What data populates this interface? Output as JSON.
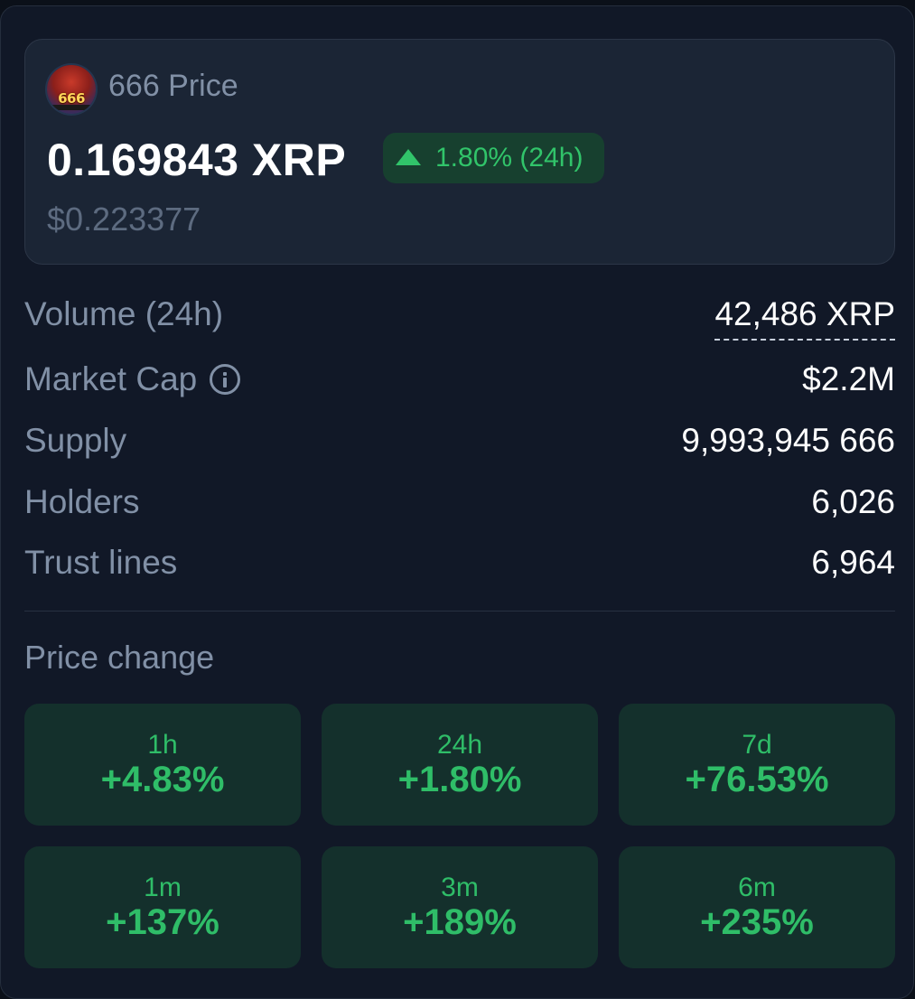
{
  "token": {
    "title": "666 Price",
    "logo_text": "666",
    "price": "0.169843 XRP",
    "change": "1.80% (24h)",
    "price_usd": "$0.223377"
  },
  "stats": [
    {
      "label": "Volume (24h)",
      "value": "42,486 XRP"
    },
    {
      "label": "Market Cap",
      "value": "$2.2M"
    },
    {
      "label": "Supply",
      "value": "9,993,945 666"
    },
    {
      "label": "Holders",
      "value": "6,026"
    },
    {
      "label": "Trust lines",
      "value": "6,964"
    }
  ],
  "price_change": {
    "title": "Price change",
    "tiles": [
      {
        "period": "1h",
        "value": "+4.83%"
      },
      {
        "period": "24h",
        "value": "+1.80%"
      },
      {
        "period": "7d",
        "value": "+76.53%"
      },
      {
        "period": "1m",
        "value": "+137%"
      },
      {
        "period": "3m",
        "value": "+189%"
      },
      {
        "period": "6m",
        "value": "+235%"
      }
    ]
  },
  "colors": {
    "background": "#111827",
    "card": "#1b2535",
    "positive": "#31c46a",
    "positive_bg": "#17402f",
    "tile_bg": "#14302c",
    "muted_text": "#8190a6"
  },
  "icons": {
    "token_logo": "token-666-logo",
    "change_arrow": "triangle-up-icon",
    "market_cap_info": "info-icon"
  }
}
